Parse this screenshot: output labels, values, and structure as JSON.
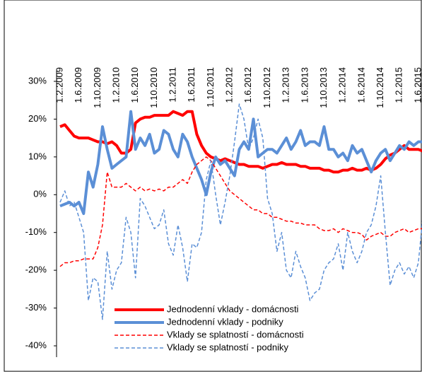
{
  "chart_data": {
    "type": "line",
    "categories": [
      "1.2.2009",
      null,
      null,
      null,
      "1.6.2009",
      null,
      null,
      null,
      "1.10.2009",
      null,
      null,
      null,
      "1.2.2010",
      null,
      null,
      null,
      "1.6.2010",
      null,
      null,
      null,
      "1.10.2010",
      null,
      null,
      null,
      "1.2.2011",
      null,
      null,
      null,
      "1.6.2011",
      null,
      null,
      null,
      "1.10.2011",
      null,
      null,
      null,
      "1.2.2012",
      null,
      null,
      null,
      "1.6.2012",
      null,
      null,
      null,
      "1.10.2012",
      null,
      null,
      null,
      "1.2.2013",
      null,
      null,
      null,
      "1.6.2013",
      null,
      null,
      null,
      "1.10.2013",
      null,
      null,
      null,
      "1.2.2014",
      null,
      null,
      null,
      "1.6.2014",
      null,
      null,
      null,
      "1.10.2014",
      null,
      null,
      null,
      "1.2.2015",
      null,
      null,
      null,
      "1.6.2015",
      null
    ],
    "ylim": [
      -40,
      30
    ],
    "yticks": [
      {
        "value": -40,
        "label": "-40%"
      },
      {
        "value": -30,
        "label": "-30%"
      },
      {
        "value": -20,
        "label": "-20%"
      },
      {
        "value": -10,
        "label": "-10%"
      },
      {
        "value": 0,
        "label": "0%"
      },
      {
        "value": 10,
        "label": "10%"
      },
      {
        "value": 20,
        "label": "20%"
      },
      {
        "value": 30,
        "label": "30%"
      }
    ],
    "series": [
      {
        "name": "Jednodenní vklady - domácnosti",
        "color": "#ff0000",
        "style": "solid",
        "width": 4,
        "values": [
          18,
          18.5,
          17,
          15.5,
          15,
          15,
          15,
          14.5,
          14,
          14,
          13.5,
          14,
          13,
          11,
          11,
          12,
          19,
          20,
          20.5,
          20.5,
          21,
          21,
          21,
          21,
          22,
          21.5,
          21,
          22,
          22,
          16,
          13,
          11,
          10,
          9.5,
          9,
          9.5,
          9,
          8.5,
          8,
          8,
          7.5,
          7.5,
          7.5,
          7,
          7.5,
          8,
          8,
          8.5,
          8,
          8,
          8,
          7.5,
          7.5,
          7,
          7,
          7,
          6.5,
          6.5,
          6,
          6,
          6.5,
          6.5,
          7,
          6.5,
          6.5,
          7,
          6.5,
          7,
          8,
          9.5,
          10.5,
          11,
          12,
          13,
          12,
          12,
          12,
          11.5
        ]
      },
      {
        "name": "Jednodenní vklady - podniky",
        "color": "#5b8fd6",
        "style": "solid",
        "width": 4,
        "values": [
          -3,
          -2.5,
          -2,
          -3,
          -2,
          -5,
          6,
          2,
          8,
          18,
          12,
          7,
          8,
          9,
          10,
          22,
          12,
          15,
          13,
          16,
          11,
          12,
          17,
          16,
          12,
          10,
          16,
          14,
          10,
          7,
          4,
          0,
          6,
          10,
          8,
          9,
          7,
          5,
          12,
          14,
          12,
          20,
          10,
          11,
          12,
          12,
          11,
          13,
          15,
          12,
          14,
          17,
          13,
          14,
          14,
          13,
          18,
          12,
          12,
          10,
          11,
          9,
          13,
          11,
          12,
          9,
          6,
          9,
          11,
          12,
          9,
          11,
          13,
          12,
          14,
          13,
          14,
          14
        ]
      },
      {
        "name": "Vklady se splatností - domácnosti",
        "color": "#ff0000",
        "style": "dashed",
        "width": 1.5,
        "values": [
          -19,
          -18,
          -18,
          -17.5,
          -17.5,
          -17,
          -17,
          -17,
          -14,
          -8,
          6,
          2,
          2,
          2,
          3,
          2,
          1,
          2,
          1,
          1.5,
          1,
          1.5,
          1,
          2,
          2,
          3,
          4,
          3,
          6,
          8,
          9,
          10,
          9,
          7,
          5,
          3,
          1,
          0,
          -1,
          -2,
          -3,
          -4,
          -4,
          -5,
          -5,
          -6,
          -6,
          -6.5,
          -7,
          -7,
          -7.5,
          -7.5,
          -8,
          -8,
          -8,
          -9,
          -9.5,
          -9.5,
          -9,
          -10,
          -9,
          -9.5,
          -10,
          -10,
          -10.5,
          -12,
          -11,
          -10.5,
          -10,
          -11,
          -11,
          -10,
          -9.5,
          -9,
          -10,
          -9.5,
          -9,
          -9
        ]
      },
      {
        "name": "Vklady se splatností - podniky",
        "color": "#5b8fd6",
        "style": "dashed",
        "width": 1.5,
        "values": [
          -2,
          1,
          -3,
          -2,
          -6,
          -10,
          -28,
          -22,
          -23,
          -33,
          -15,
          -25,
          -20,
          -18,
          -6,
          -10,
          -22,
          -1,
          -3,
          -6,
          -9,
          -8,
          -4,
          -13,
          -16,
          -8,
          -14,
          -23,
          -13,
          -14,
          -10,
          4,
          9,
          0,
          -8,
          -2,
          5,
          14,
          24,
          20,
          12,
          15,
          20,
          15,
          -1,
          -5,
          -15,
          -10,
          -20,
          -22,
          -15,
          -19,
          -22,
          -28,
          -26,
          -25,
          -20,
          -18,
          -17,
          -13,
          -20,
          -10,
          -15,
          -18,
          -15,
          -10,
          -8,
          -3,
          5,
          -10,
          -24,
          -20,
          -18,
          -21,
          -19,
          -22,
          -18,
          -5
        ]
      }
    ]
  }
}
